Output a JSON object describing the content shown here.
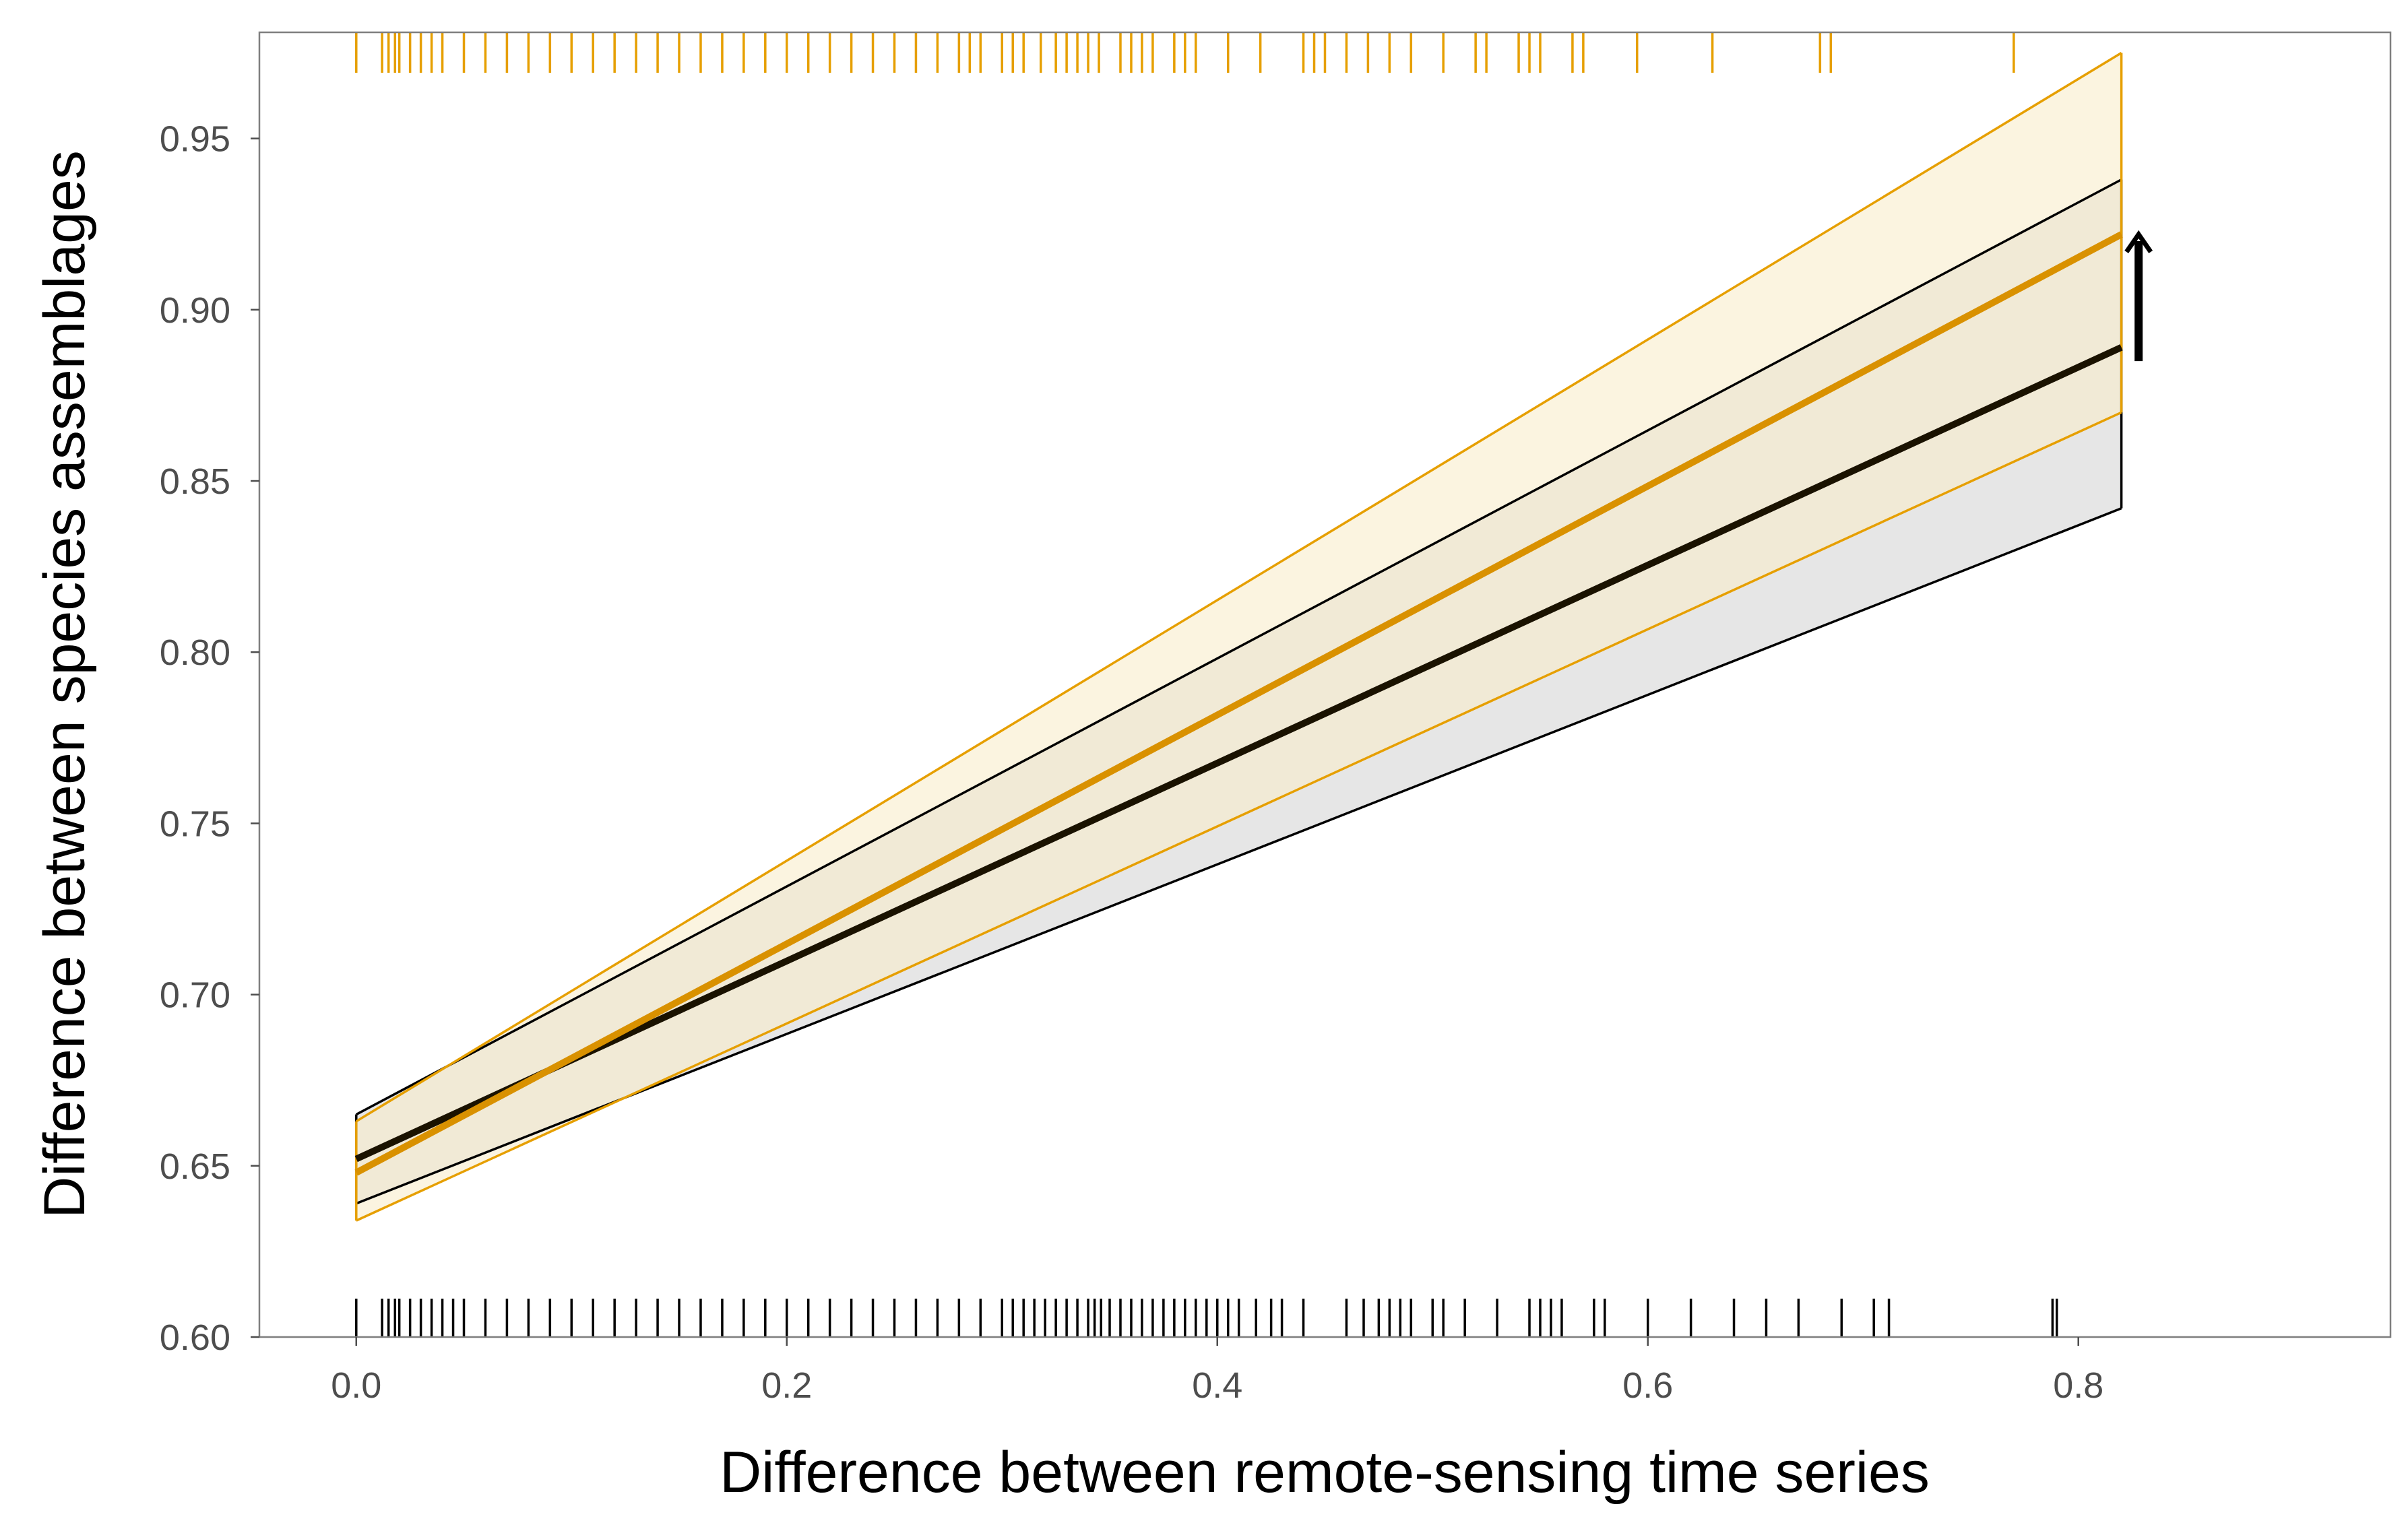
{
  "chart_data": {
    "type": "line",
    "title": "",
    "xlabel": "Difference between remote-sensing time series",
    "ylabel": "Difference between species assemblages",
    "xlim": [
      -0.045,
      0.945
    ],
    "ylim": [
      0.6,
      0.981
    ],
    "x_ticks": [
      0.0,
      0.2,
      0.4,
      0.6,
      0.8
    ],
    "x_tick_labels": [
      "0.0",
      "0.2",
      "0.4",
      "0.6",
      "0.8"
    ],
    "y_ticks": [
      0.6,
      0.65,
      0.7,
      0.75,
      0.8,
      0.85,
      0.9,
      0.95
    ],
    "y_tick_labels": [
      "0.60",
      "0.65",
      "0.70",
      "0.75",
      "0.80",
      "0.85",
      "0.90",
      "0.95"
    ],
    "grid": false,
    "legend": "none",
    "x": [
      0.0,
      0.82
    ],
    "series": [
      {
        "color": "#000000",
        "fill": "#e6e6e6",
        "values": [
          0.652,
          0.889
        ],
        "lower": [
          0.639,
          0.842
        ],
        "upper": [
          0.665,
          0.938
        ],
        "rug_position": "bottom",
        "rug_x": [
          0.0,
          0.012,
          0.015,
          0.018,
          0.02,
          0.025,
          0.03,
          0.035,
          0.04,
          0.045,
          0.05,
          0.06,
          0.07,
          0.08,
          0.09,
          0.1,
          0.11,
          0.12,
          0.13,
          0.14,
          0.15,
          0.16,
          0.17,
          0.18,
          0.19,
          0.2,
          0.21,
          0.22,
          0.23,
          0.24,
          0.25,
          0.26,
          0.27,
          0.28,
          0.29,
          0.3,
          0.305,
          0.31,
          0.315,
          0.32,
          0.325,
          0.33,
          0.335,
          0.34,
          0.343,
          0.346,
          0.35,
          0.355,
          0.36,
          0.365,
          0.37,
          0.375,
          0.38,
          0.385,
          0.39,
          0.395,
          0.4,
          0.405,
          0.41,
          0.418,
          0.425,
          0.43,
          0.44,
          0.46,
          0.468,
          0.475,
          0.48,
          0.485,
          0.49,
          0.5,
          0.505,
          0.515,
          0.53,
          0.545,
          0.55,
          0.555,
          0.56,
          0.575,
          0.58,
          0.6,
          0.62,
          0.64,
          0.655,
          0.67,
          0.69,
          0.705,
          0.712,
          0.788,
          0.79
        ]
      },
      {
        "color": "#e69f00",
        "fill": "#f8eccc",
        "values": [
          0.648,
          0.922
        ],
        "lower": [
          0.634,
          0.87
        ],
        "upper": [
          0.663,
          0.975
        ],
        "rug_position": "top",
        "rug_x": [
          0.0,
          0.012,
          0.015,
          0.018,
          0.02,
          0.025,
          0.03,
          0.035,
          0.04,
          0.05,
          0.06,
          0.07,
          0.08,
          0.09,
          0.1,
          0.11,
          0.12,
          0.13,
          0.14,
          0.15,
          0.16,
          0.17,
          0.18,
          0.19,
          0.2,
          0.21,
          0.22,
          0.23,
          0.24,
          0.25,
          0.26,
          0.27,
          0.28,
          0.285,
          0.29,
          0.3,
          0.305,
          0.31,
          0.318,
          0.325,
          0.33,
          0.335,
          0.34,
          0.345,
          0.355,
          0.36,
          0.365,
          0.37,
          0.38,
          0.385,
          0.39,
          0.405,
          0.42,
          0.44,
          0.445,
          0.45,
          0.46,
          0.47,
          0.48,
          0.49,
          0.505,
          0.52,
          0.525,
          0.54,
          0.545,
          0.55,
          0.565,
          0.57,
          0.595,
          0.63,
          0.68,
          0.685,
          0.77
        ]
      }
    ],
    "annotations": [
      {
        "type": "arrow",
        "direction": "up",
        "x": 0.828,
        "y_from": 0.885,
        "y_to": 0.922
      }
    ]
  }
}
